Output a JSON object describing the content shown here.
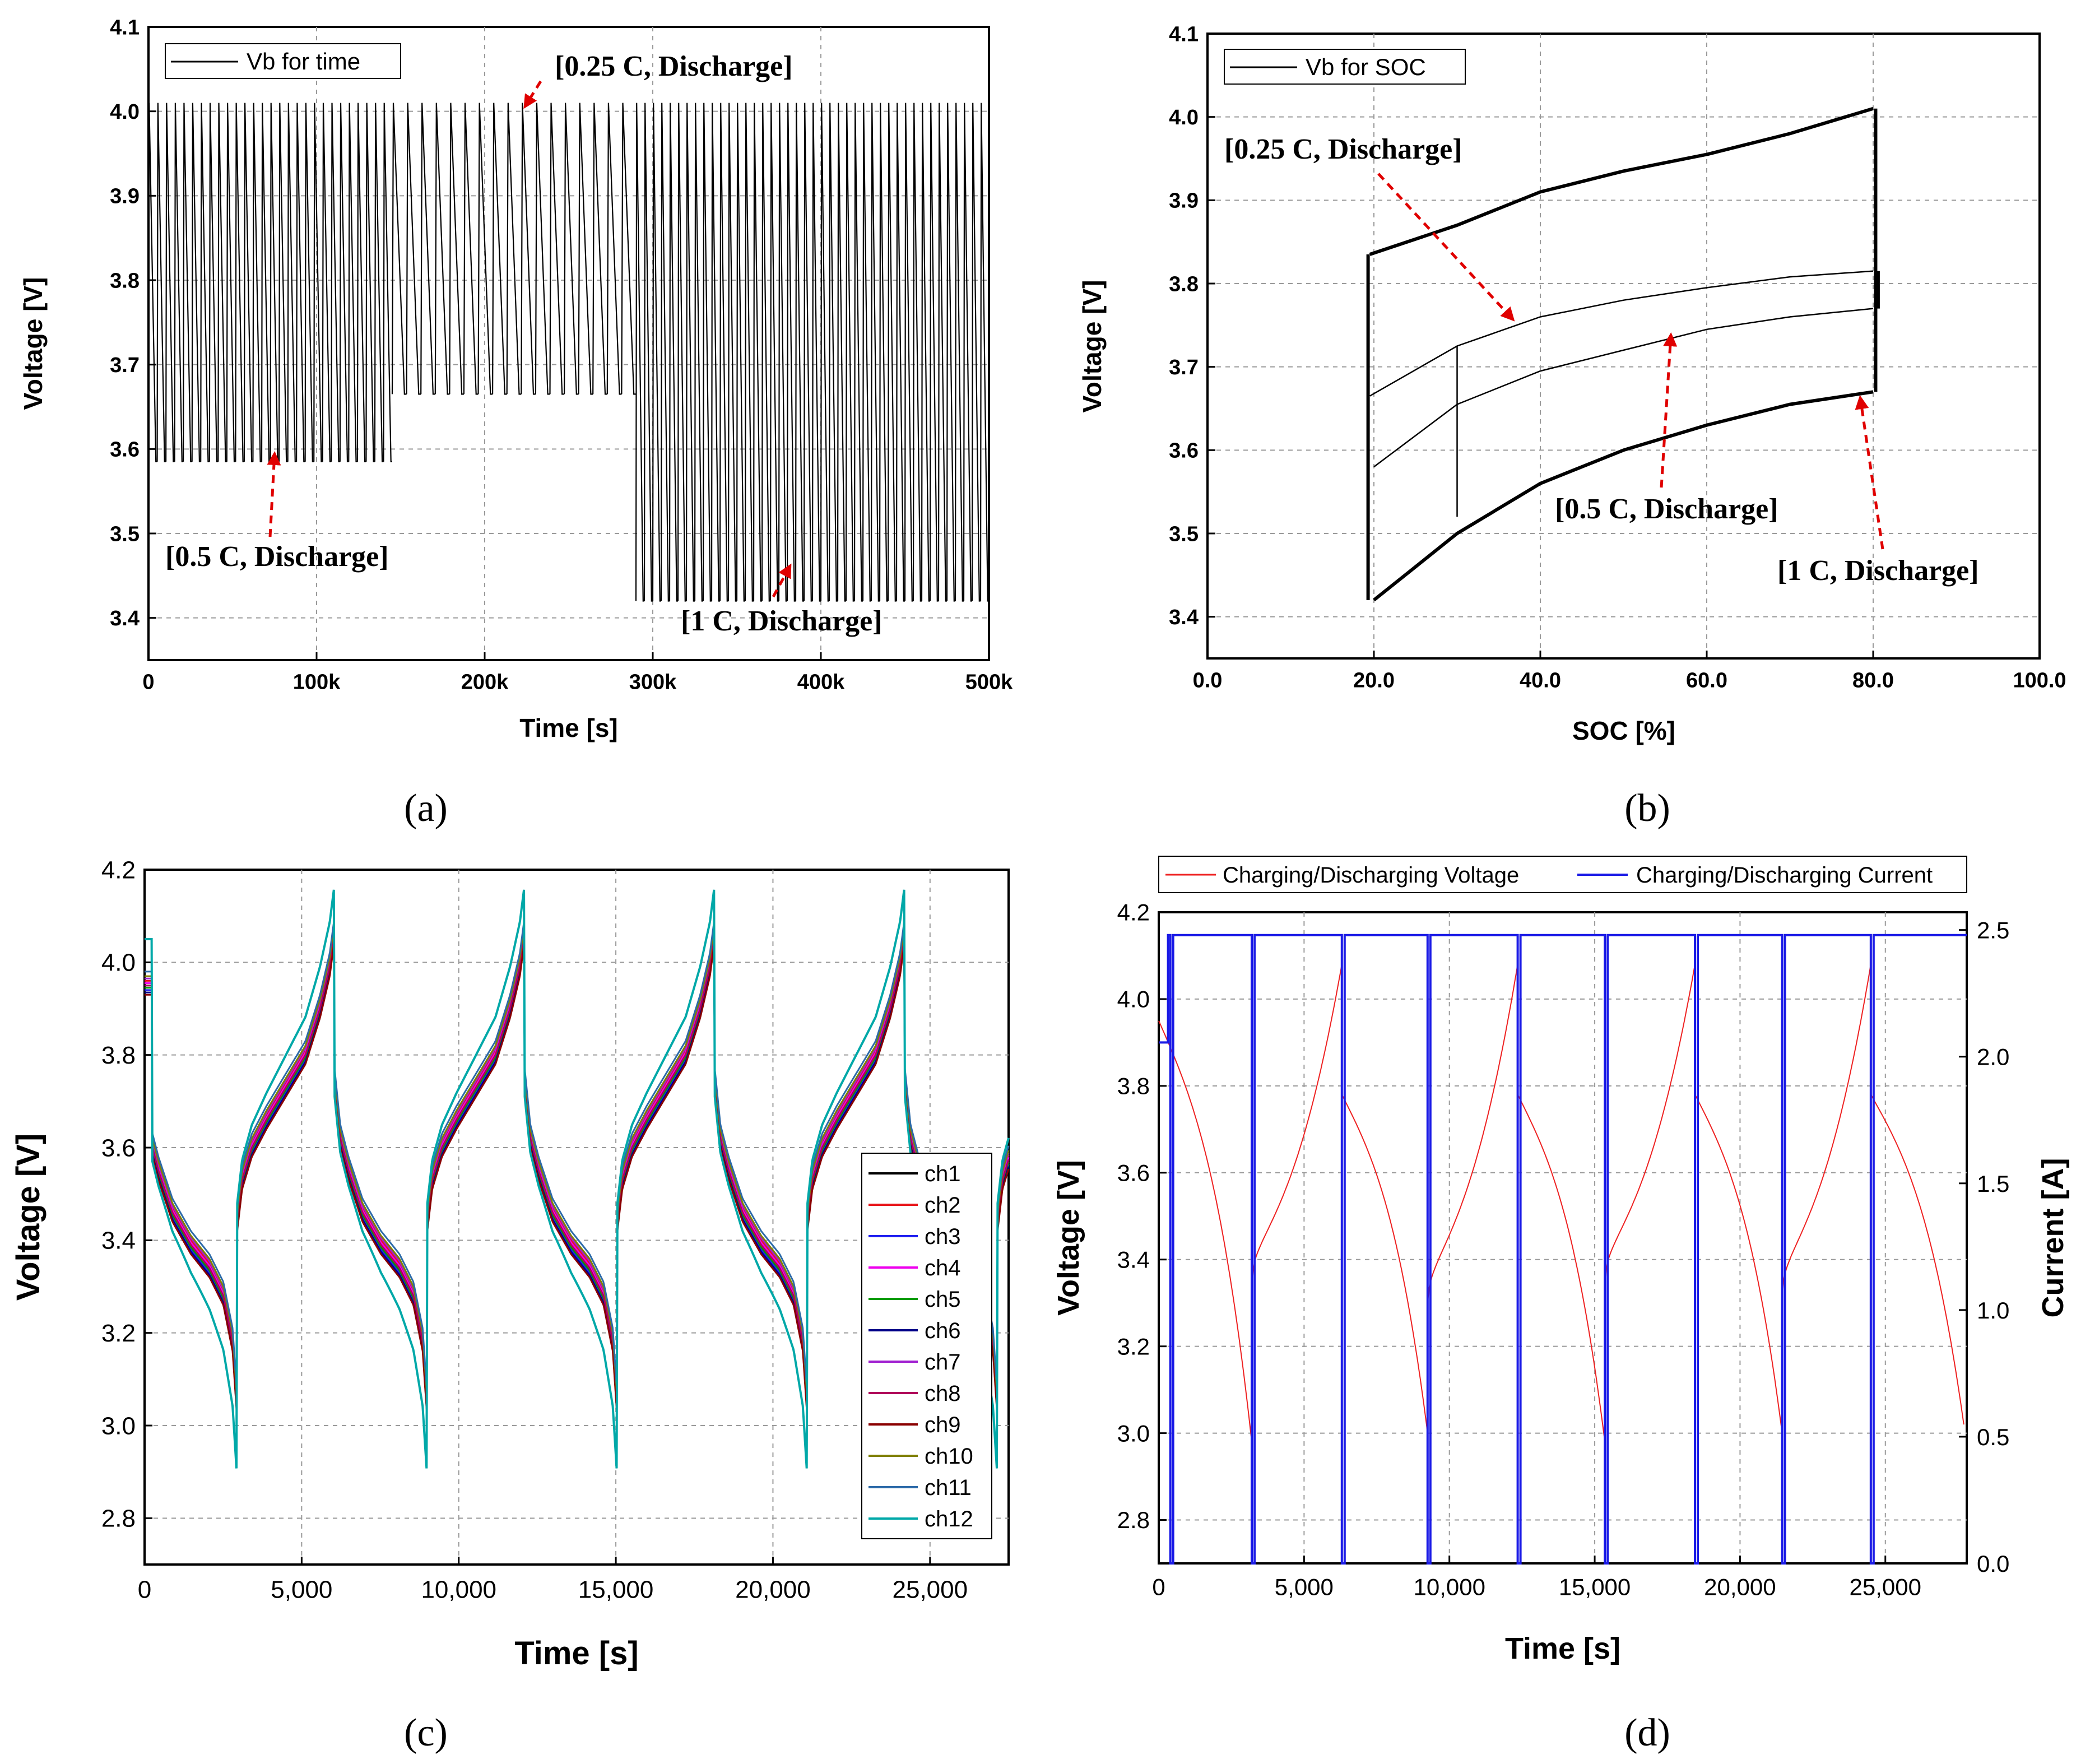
{
  "chart_data": [
    {
      "type": "line",
      "panel_label": "(a)",
      "xlabel": "Time [s]",
      "ylabel": "Voltage [V]",
      "xlim": [
        0,
        500000
      ],
      "ylim": [
        3.35,
        4.1
      ],
      "x_ticks": [
        0,
        100000,
        200000,
        300000,
        400000,
        500000
      ],
      "x_tick_labels": [
        "0",
        "100k",
        "200k",
        "300k",
        "400k",
        "500k"
      ],
      "y_ticks": [
        3.4,
        3.5,
        3.6,
        3.7,
        3.8,
        3.9,
        4.0,
        4.1
      ],
      "y_tick_labels": [
        "3.4",
        "3.5",
        "3.6",
        "3.7",
        "3.8",
        "3.9",
        "4.0",
        "4.1"
      ],
      "grid": true,
      "legend_position": "top-left",
      "colors": {
        "line": "#000000",
        "annotation_arrow": "#e00000"
      },
      "series": [
        {
          "name": "Vb for time",
          "segments": [
            {
              "x_range": [
                0,
                145000
              ],
              "cycles": 28,
              "v_max": 4.01,
              "v_min": 3.585,
              "rate": "0.5 C"
            },
            {
              "x_range": [
                145000,
                290000
              ],
              "cycles": 17,
              "v_max": 4.01,
              "v_min": 3.665,
              "rate": "0.25 C"
            },
            {
              "x_range": [
                290000,
                500000
              ],
              "cycles": 42,
              "v_max": 4.01,
              "v_min": 3.42,
              "rate": "1 C"
            }
          ]
        }
      ],
      "annotations": [
        {
          "text": "[0.25 C, Discharge]",
          "target": [
            225000,
            4.0
          ]
        },
        {
          "text": "[0.5 C, Discharge]",
          "target": [
            75000,
            3.585
          ]
        },
        {
          "text": "[1 C, Discharge]",
          "target": [
            385000,
            3.43
          ]
        }
      ]
    },
    {
      "type": "line",
      "panel_label": "(b)",
      "xlabel": "SOC [%]",
      "ylabel": "Voltage [V]",
      "xlim": [
        0,
        100
      ],
      "ylim": [
        3.35,
        4.1
      ],
      "x_ticks": [
        0,
        20,
        40,
        60,
        80,
        100
      ],
      "x_tick_labels": [
        "0.0",
        "20.0",
        "40.0",
        "60.0",
        "80.0",
        "100.0"
      ],
      "y_ticks": [
        3.4,
        3.5,
        3.6,
        3.7,
        3.8,
        3.9,
        4.0,
        4.1
      ],
      "y_tick_labels": [
        "3.4",
        "3.5",
        "3.6",
        "3.7",
        "3.8",
        "3.9",
        "4.0",
        "4.1"
      ],
      "grid": true,
      "legend_position": "top-left",
      "colors": {
        "line": "#000000",
        "annotation_arrow": "#e00000"
      },
      "series": [
        {
          "name": "Vb for SOC",
          "loops": [
            {
              "rate": "1 C",
              "charge": [
                [
                  19.5,
                  3.835
                ],
                [
                  30,
                  3.87
                ],
                [
                  40,
                  3.91
                ],
                [
                  50,
                  3.935
                ],
                [
                  60,
                  3.955
                ],
                [
                  70,
                  3.98
                ],
                [
                  80,
                  4.01
                ]
              ],
              "discharge": [
                [
                  80,
                  3.67
                ],
                [
                  70,
                  3.655
                ],
                [
                  60,
                  3.63
                ],
                [
                  50,
                  3.6
                ],
                [
                  40,
                  3.56
                ],
                [
                  30,
                  3.5
                ],
                [
                  25,
                  3.46
                ],
                [
                  20,
                  3.42
                ]
              ]
            },
            {
              "rate": "0.5 C",
              "charge": [
                [
                  19.5,
                  3.665
                ],
                [
                  30,
                  3.725
                ],
                [
                  40,
                  3.76
                ],
                [
                  50,
                  3.78
                ],
                [
                  60,
                  3.795
                ],
                [
                  70,
                  3.808
                ],
                [
                  80,
                  3.815
                ]
              ],
              "discharge": [
                [
                  80,
                  3.77
                ],
                [
                  70,
                  3.76
                ],
                [
                  60,
                  3.745
                ],
                [
                  50,
                  3.72
                ],
                [
                  40,
                  3.695
                ],
                [
                  30,
                  3.655
                ],
                [
                  20,
                  3.58
                ]
              ]
            },
            {
              "rate": "0.25 C",
              "charge": [],
              "discharge": [
                [
                  30,
                  3.725
                ],
                [
                  30,
                  3.52
                ]
              ]
            }
          ]
        }
      ],
      "annotations": [
        {
          "text": "[0.25 C, Discharge]",
          "target": [
            37,
            3.755
          ]
        },
        {
          "text": "[0.5 C, Discharge]",
          "target": [
            56,
            3.735
          ]
        },
        {
          "text": "[1 C, Discharge]",
          "target": [
            78.5,
            3.66
          ]
        }
      ]
    },
    {
      "type": "line",
      "panel_label": "(c)",
      "xlabel": "Time [s]",
      "ylabel": "Voltage [V]",
      "xlim": [
        0,
        27500
      ],
      "ylim": [
        2.7,
        4.2
      ],
      "x_ticks": [
        0,
        5000,
        10000,
        15000,
        20000,
        25000
      ],
      "x_tick_labels": [
        "0",
        "5,000",
        "10,000",
        "15,000",
        "20,000",
        "25,000"
      ],
      "y_ticks": [
        2.8,
        3.0,
        3.2,
        3.4,
        3.6,
        3.8,
        4.0,
        4.2
      ],
      "y_tick_labels": [
        "2.8",
        "3.0",
        "3.2",
        "3.4",
        "3.6",
        "3.8",
        "4.0",
        "4.2"
      ],
      "grid": true,
      "legend_position": "right",
      "period_s": 6050,
      "discharge_duration_s": 2950,
      "profile_discharge_v": [
        [
          0,
          3.74
        ],
        [
          0.06,
          3.62
        ],
        [
          0.15,
          3.55
        ],
        [
          0.3,
          3.46
        ],
        [
          0.5,
          3.39
        ],
        [
          0.7,
          3.34
        ],
        [
          0.85,
          3.28
        ],
        [
          0.95,
          3.18
        ],
        [
          1.0,
          3.03
        ]
      ],
      "profile_charge_v": [
        [
          0,
          3.44
        ],
        [
          0.05,
          3.53
        ],
        [
          0.15,
          3.6
        ],
        [
          0.3,
          3.66
        ],
        [
          0.5,
          3.73
        ],
        [
          0.7,
          3.8
        ],
        [
          0.85,
          3.9
        ],
        [
          0.95,
          3.99
        ],
        [
          1.0,
          4.07
        ]
      ],
      "series": [
        {
          "name": "ch1",
          "color": "#000000",
          "offset_v": 0.0
        },
        {
          "name": "ch2",
          "color": "#e8161b",
          "offset_v": 0.01
        },
        {
          "name": "ch3",
          "color": "#2020f0",
          "offset_v": -0.01
        },
        {
          "name": "ch4",
          "color": "#ee00ee",
          "offset_v": 0.005
        },
        {
          "name": "ch5",
          "color": "#009a00",
          "offset_v": -0.005
        },
        {
          "name": "ch6",
          "color": "#000088",
          "offset_v": -0.015
        },
        {
          "name": "ch7",
          "color": "#a020d0",
          "offset_v": 0.015
        },
        {
          "name": "ch8",
          "color": "#b0005a",
          "offset_v": 0.0
        },
        {
          "name": "ch9",
          "color": "#8a0000",
          "offset_v": -0.02
        },
        {
          "name": "ch10",
          "color": "#808000",
          "offset_v": 0.02
        },
        {
          "name": "ch11",
          "color": "#2c6aa8",
          "offset_v": 0.03
        },
        {
          "name": "ch12",
          "color": "#00a8a8",
          "offset_v": 0.0,
          "wide": true
        }
      ]
    },
    {
      "type": "line",
      "panel_label": "(d)",
      "xlabel": "Time [s]",
      "ylabel": "Voltage [V]",
      "y2label": "Current [A]",
      "xlim": [
        0,
        27800
      ],
      "ylim": [
        2.7,
        4.2
      ],
      "y2lim": [
        0,
        2.57
      ],
      "x_ticks": [
        0,
        5000,
        10000,
        15000,
        20000,
        25000
      ],
      "x_tick_labels": [
        "0",
        "5,000",
        "10,000",
        "15,000",
        "20,000",
        "25,000"
      ],
      "y_ticks": [
        2.8,
        3.0,
        3.2,
        3.4,
        3.6,
        3.8,
        4.0,
        4.2
      ],
      "y_tick_labels": [
        "2.8",
        "3.0",
        "3.2",
        "3.4",
        "3.6",
        "3.8",
        "4.0",
        "4.2"
      ],
      "y2_ticks": [
        0,
        0.5,
        1.0,
        1.5,
        2.0,
        2.5
      ],
      "y2_tick_labels": [
        "0.0",
        "0.5",
        "1.0",
        "1.5",
        "2.0",
        "2.5"
      ],
      "grid": true,
      "legend_position": "top",
      "current_high_a": 2.48,
      "current_switch_times_s": [
        400,
        3200,
        6300,
        9250,
        12350,
        15350,
        18450,
        21450,
        24500
      ],
      "voltage_cycles": [
        {
          "start": 0,
          "end": 3200,
          "phase": "discharge",
          "v_start": 3.95,
          "v_end": 2.98
        },
        {
          "start": 3200,
          "end": 6300,
          "phase": "charge",
          "v_start": 3.35,
          "v_end": 4.08
        },
        {
          "start": 6300,
          "end": 9250,
          "phase": "discharge",
          "v_start": 3.78,
          "v_end": 3.0
        },
        {
          "start": 9250,
          "end": 12350,
          "phase": "charge",
          "v_start": 3.3,
          "v_end": 4.08
        },
        {
          "start": 12350,
          "end": 15350,
          "phase": "discharge",
          "v_start": 3.78,
          "v_end": 2.98
        },
        {
          "start": 15350,
          "end": 18450,
          "phase": "charge",
          "v_start": 3.35,
          "v_end": 4.08
        },
        {
          "start": 18450,
          "end": 21450,
          "phase": "discharge",
          "v_start": 3.78,
          "v_end": 3.0
        },
        {
          "start": 21450,
          "end": 24500,
          "phase": "charge",
          "v_start": 3.32,
          "v_end": 4.08
        },
        {
          "start": 24500,
          "end": 27700,
          "phase": "discharge",
          "v_start": 3.78,
          "v_end": 3.02
        }
      ],
      "series": [
        {
          "name": "Charging/Discharging Voltage",
          "color": "#ee2222",
          "axis": "left"
        },
        {
          "name": "Charging/Discharging Current",
          "color": "#1a1ae6",
          "axis": "right"
        }
      ]
    }
  ]
}
